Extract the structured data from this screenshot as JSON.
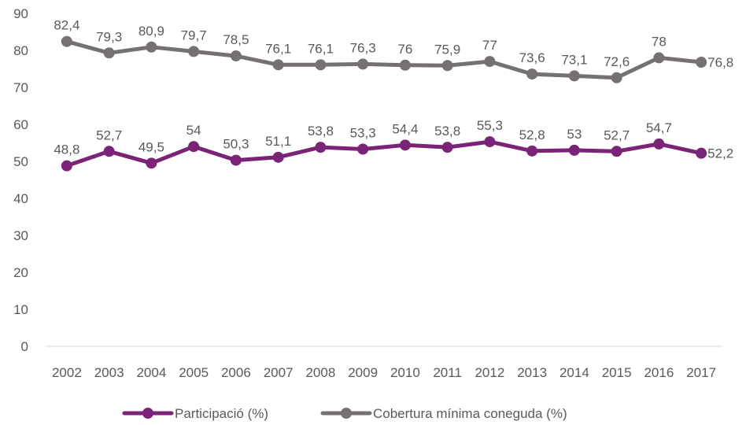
{
  "chart_data": {
    "type": "line",
    "title": "",
    "xlabel": "",
    "ylabel": "",
    "ylim": [
      0,
      90
    ],
    "yticks": [
      0,
      10,
      20,
      30,
      40,
      50,
      60,
      70,
      80,
      90
    ],
    "grid": false,
    "legend_position": "bottom",
    "x": [
      "2002",
      "2003",
      "2004",
      "2005",
      "2006",
      "2007",
      "2008",
      "2009",
      "2010",
      "2011",
      "2012",
      "2013",
      "2014",
      "2015",
      "2016",
      "2017"
    ],
    "series": [
      {
        "name": "Participació (%)",
        "color": "#7b2376",
        "values": [
          48.8,
          52.7,
          49.5,
          54,
          50.3,
          51.1,
          53.8,
          53.3,
          54.4,
          53.8,
          55.3,
          52.8,
          53,
          52.7,
          54.7,
          52.2
        ],
        "labels": [
          "48,8",
          "52,7",
          "49,5",
          "54",
          "50,3",
          "51,1",
          "53,8",
          "53,3",
          "54,4",
          "53,8",
          "55,3",
          "52,8",
          "53",
          "52,7",
          "54,7",
          "52,2"
        ]
      },
      {
        "name": "Cobertura mínima coneguda  (%)",
        "color": "#767171",
        "values": [
          82.4,
          79.3,
          80.9,
          79.7,
          78.5,
          76.1,
          76.1,
          76.3,
          76,
          75.9,
          77,
          73.6,
          73.1,
          72.6,
          78,
          76.8
        ],
        "labels": [
          "82,4",
          "79,3",
          "80,9",
          "79,7",
          "78,5",
          "76,1",
          "76,1",
          "76,3",
          "76",
          "75,9",
          "77",
          "73,6",
          "73,1",
          "72,6",
          "78",
          "76,8"
        ]
      }
    ]
  }
}
